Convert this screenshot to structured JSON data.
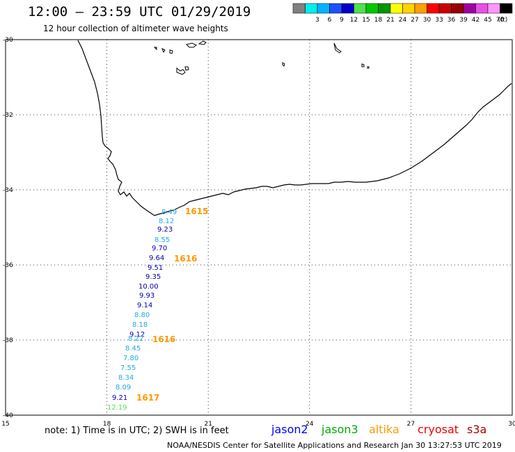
{
  "header": {
    "title": "12:00 – 23:59 UTC 01/29/2019",
    "subtitle": "12 hour collection of altimeter wave heights"
  },
  "colorbar": {
    "unit": "(ft)",
    "bins": [
      {
        "color": "#808080",
        "label": ""
      },
      {
        "color": "#00eeee",
        "label": "3"
      },
      {
        "color": "#00b4ff",
        "label": "6"
      },
      {
        "color": "#1e50ff",
        "label": "9"
      },
      {
        "color": "#0000c8",
        "label": "12"
      },
      {
        "color": "#50e050",
        "label": "15"
      },
      {
        "color": "#00c800",
        "label": "18"
      },
      {
        "color": "#009600",
        "label": "21"
      },
      {
        "color": "#ffff00",
        "label": "24"
      },
      {
        "color": "#ffd200",
        "label": "27"
      },
      {
        "color": "#ffa000",
        "label": "30"
      },
      {
        "color": "#ff0000",
        "label": "33"
      },
      {
        "color": "#c80000",
        "label": "36"
      },
      {
        "color": "#960000",
        "label": "39"
      },
      {
        "color": "#a000a0",
        "label": "42"
      },
      {
        "color": "#e650e6",
        "label": "45"
      },
      {
        "color": "#ff96ff",
        "label": "70"
      },
      {
        "color": "#000000",
        "label": ""
      }
    ]
  },
  "map": {
    "lon_ticks": [
      "15",
      "18",
      "21",
      "24",
      "27",
      "30"
    ],
    "lat_ticks": [
      "-30",
      "-32",
      "-34",
      "-36",
      "-38",
      "-40"
    ],
    "lon_range": [
      15,
      30
    ],
    "lat_range": [
      -40,
      -30
    ]
  },
  "observations": [
    {
      "swh": "8.49",
      "color": "#22aadd"
    },
    {
      "swh": "8.12",
      "color": "#22aadd"
    },
    {
      "swh": "9.23",
      "color": "#0000aa"
    },
    {
      "swh": "8.55",
      "color": "#22aadd"
    },
    {
      "swh": "9.70",
      "color": "#0000aa"
    },
    {
      "swh": "9.64",
      "color": "#0000aa"
    },
    {
      "swh": "9.51",
      "color": "#0000aa"
    },
    {
      "swh": "9.35",
      "color": "#0000aa"
    },
    {
      "swh": "10.00",
      "color": "#0000aa"
    },
    {
      "swh": "9.93",
      "color": "#0000aa"
    },
    {
      "swh": "9.14",
      "color": "#0000aa"
    },
    {
      "swh": "8.80",
      "color": "#22aadd"
    },
    {
      "swh": "8.18",
      "color": "#22aadd"
    },
    {
      "swh": "9.12",
      "color": "#0000aa"
    },
    {
      "swh": "8.22",
      "color": "#22aadd"
    },
    {
      "swh": "8.45",
      "color": "#22aadd"
    },
    {
      "swh": "7.80",
      "color": "#22aadd"
    },
    {
      "swh": "7.55",
      "color": "#22aadd"
    },
    {
      "swh": "8.34",
      "color": "#22aadd"
    },
    {
      "swh": "8.09",
      "color": "#22aadd"
    },
    {
      "swh": "9.21",
      "color": "#0000aa"
    },
    {
      "swh": "12.19",
      "color": "#55dd55"
    }
  ],
  "time_labels": [
    "1615",
    "1616",
    "1616",
    "1617"
  ],
  "note": "note:  1) Time is in UTC;  2) SWH is in feet",
  "satellites": [
    {
      "name": "jason2",
      "color": "#0000ff"
    },
    {
      "name": "jason3",
      "color": "#00aa00"
    },
    {
      "name": "altika",
      "color": "#ff9900"
    },
    {
      "name": "cryosat",
      "color": "#ee0000"
    },
    {
      "name": "s3a",
      "color": "#aa0000"
    }
  ],
  "credit": "NOAA/NESDIS Center for Satellite Applications and Research   Jan 30 13:27:53 UTC 2019"
}
